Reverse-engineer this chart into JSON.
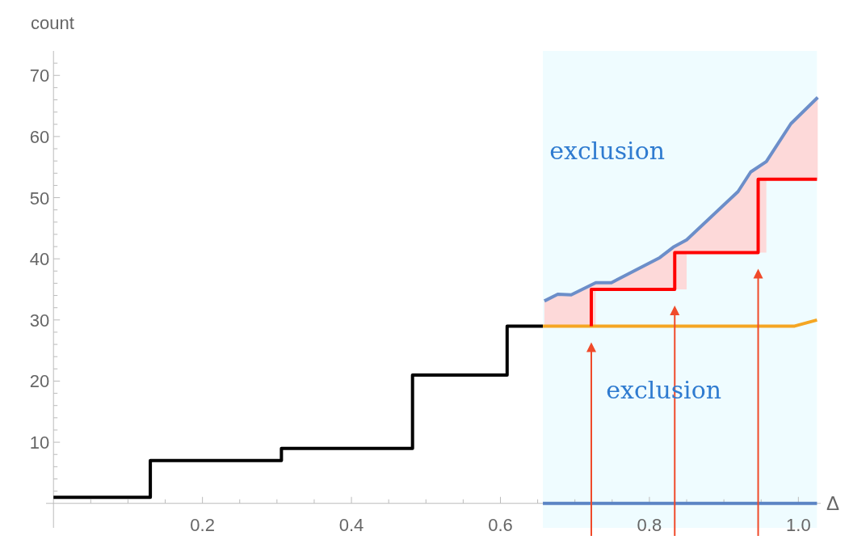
{
  "chart_data": {
    "type": "step",
    "ylabel": "count",
    "xlabel": "Δ",
    "xlim": [
      -0.01,
      1.03
    ],
    "ylim": [
      -4,
      74
    ],
    "xticks": [
      {
        "value": 0.05,
        "label": null
      },
      {
        "value": 0.1,
        "label": null
      },
      {
        "value": 0.15,
        "label": null
      },
      0.2,
      {
        "value": 0.25,
        "label": null
      },
      {
        "value": 0.3,
        "label": null
      },
      {
        "value": 0.35,
        "label": null
      },
      0.4,
      {
        "value": 0.45,
        "label": null
      },
      {
        "value": 0.5,
        "label": null
      },
      {
        "value": 0.55,
        "label": null
      },
      0.6,
      {
        "value": 0.65,
        "label": null
      },
      {
        "value": 0.7,
        "label": null
      },
      {
        "value": 0.75,
        "label": null
      },
      0.8,
      {
        "value": 0.85,
        "label": null
      },
      {
        "value": 0.9,
        "label": null
      },
      {
        "value": 0.95,
        "label": null
      },
      {
        "value": 1,
        "label": "1.0"
      }
    ],
    "yticks": [
      {
        "value": 2,
        "label": null
      },
      {
        "value": 4,
        "label": null
      },
      {
        "value": 6,
        "label": null
      },
      {
        "value": 8,
        "label": null
      },
      10,
      {
        "value": 12,
        "label": null
      },
      {
        "value": 14,
        "label": null
      },
      {
        "value": 16,
        "label": null
      },
      {
        "value": 18,
        "label": null
      },
      20,
      {
        "value": 22,
        "label": null
      },
      {
        "value": 24,
        "label": null
      },
      {
        "value": 26,
        "label": null
      },
      {
        "value": 28,
        "label": null
      },
      30,
      {
        "value": 32,
        "label": null
      },
      {
        "value": 34,
        "label": null
      },
      {
        "value": 36,
        "label": null
      },
      {
        "value": 38,
        "label": null
      },
      40,
      {
        "value": 42,
        "label": null
      },
      {
        "value": 44,
        "label": null
      },
      {
        "value": 46,
        "label": null
      },
      {
        "value": 48,
        "label": null
      },
      50,
      {
        "value": 52,
        "label": null
      },
      {
        "value": 54,
        "label": null
      },
      {
        "value": 56,
        "label": null
      },
      {
        "value": 58,
        "label": null
      },
      60,
      {
        "value": 62,
        "label": null
      },
      {
        "value": 64,
        "label": null
      },
      {
        "value": 66,
        "label": null
      },
      {
        "value": 68,
        "label": null
      },
      70,
      {
        "value": 72,
        "label": null
      }
    ],
    "grid": false,
    "bands": [
      {
        "axis": "x",
        "from": 0.657,
        "to": 1.025,
        "color": "#effcff"
      }
    ],
    "annotations": [
      "exclusion",
      "exclusion"
    ],
    "series": [
      {
        "color": "#000000",
        "x": [
          0,
          0.13,
          0.306,
          0.482,
          0.609,
          0.657
        ],
        "values": [
          1,
          7,
          9,
          21,
          29,
          29
        ]
      },
      {
        "type": "line",
        "color": "#f5a623",
        "x": [
          0.657,
          0.995,
          1.025
        ],
        "values": [
          29,
          29,
          30
        ]
      },
      {
        "color": "#ff0000",
        "x": [
          0.722,
          0.722,
          0.834,
          0.946,
          1.025
        ],
        "values": [
          29,
          35,
          41,
          53,
          53
        ]
      },
      {
        "type": "line",
        "color": "#6c8ec9",
        "x": [
          0.659,
          0.677,
          0.695,
          0.728,
          0.749,
          0.814,
          0.832,
          0.85,
          0.919,
          0.936,
          0.957,
          0.99,
          1.026
        ],
        "values": [
          33.1,
          34.2,
          34.1,
          36.1,
          36.1,
          40.2,
          41.9,
          43.1,
          51,
          54.2,
          55.9,
          62.1,
          66.4
        ],
        "lower": [
          29,
          29,
          29,
          35,
          35,
          35,
          35,
          41,
          41,
          41,
          53,
          53,
          53
        ],
        "upper": [
          33.1,
          34.2,
          34.1,
          36.1,
          36.1,
          40.2,
          41.9,
          43.1,
          51,
          54.2,
          55.9,
          62.1,
          66.4
        ]
      },
      {
        "type": "line",
        "color": "#5b84c4",
        "x": [
          0.657,
          1.025
        ],
        "values": [
          0,
          0
        ]
      }
    ]
  }
}
